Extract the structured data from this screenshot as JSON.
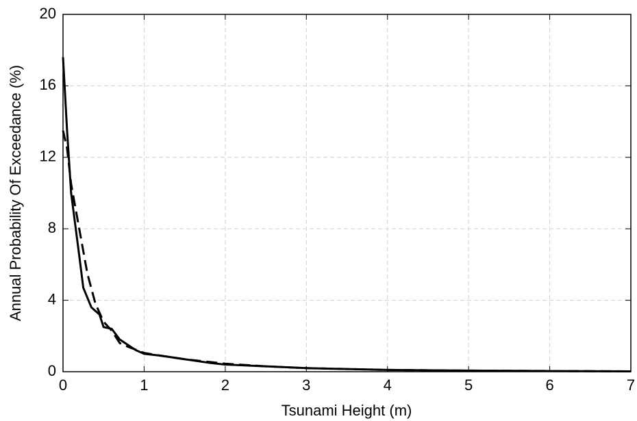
{
  "chart_data": {
    "type": "line",
    "xlabel": "Tsunami Height (m)",
    "ylabel": "Annual Probability Of Exceedance (%)",
    "xlim": [
      0,
      7
    ],
    "xticks": [
      0,
      1,
      2,
      3,
      4,
      5,
      6,
      7
    ],
    "ylim": [
      0,
      20
    ],
    "yticks": [
      0,
      4,
      8,
      12,
      16,
      20
    ],
    "grid": true,
    "series": [
      {
        "color": "#000000",
        "dash": false,
        "x": [
          0,
          0.05,
          0.1,
          0.2,
          0.25,
          0.35,
          0.45,
          0.5,
          0.6,
          0.7,
          0.8,
          0.9,
          1.0,
          1.2,
          1.5,
          1.8,
          2.0,
          2.5,
          3.0,
          3.5,
          4.0,
          5.0,
          6.0,
          7.0
        ],
        "values": [
          17.6,
          13.5,
          10,
          6.5,
          4.7,
          3.6,
          3.2,
          2.5,
          2.4,
          1.8,
          1.5,
          1.2,
          1.0,
          0.9,
          0.7,
          0.5,
          0.4,
          0.3,
          0.2,
          0.15,
          0.1,
          0.06,
          0.04,
          0.02
        ]
      },
      {
        "color": "#000000",
        "dash": true,
        "x": [
          0,
          0.05,
          0.1,
          0.2,
          0.3,
          0.4,
          0.5,
          0.6,
          0.7,
          0.8,
          1.0,
          1.2,
          1.5,
          2.0,
          2.5,
          3.0,
          4.0,
          5.0,
          6.0,
          7.0
        ],
        "values": [
          13.5,
          12.5,
          10.5,
          8,
          5.5,
          3.8,
          2.8,
          2.3,
          1.6,
          1.4,
          1.05,
          0.9,
          0.7,
          0.45,
          0.3,
          0.2,
          0.1,
          0.06,
          0.04,
          0.02
        ]
      }
    ]
  }
}
